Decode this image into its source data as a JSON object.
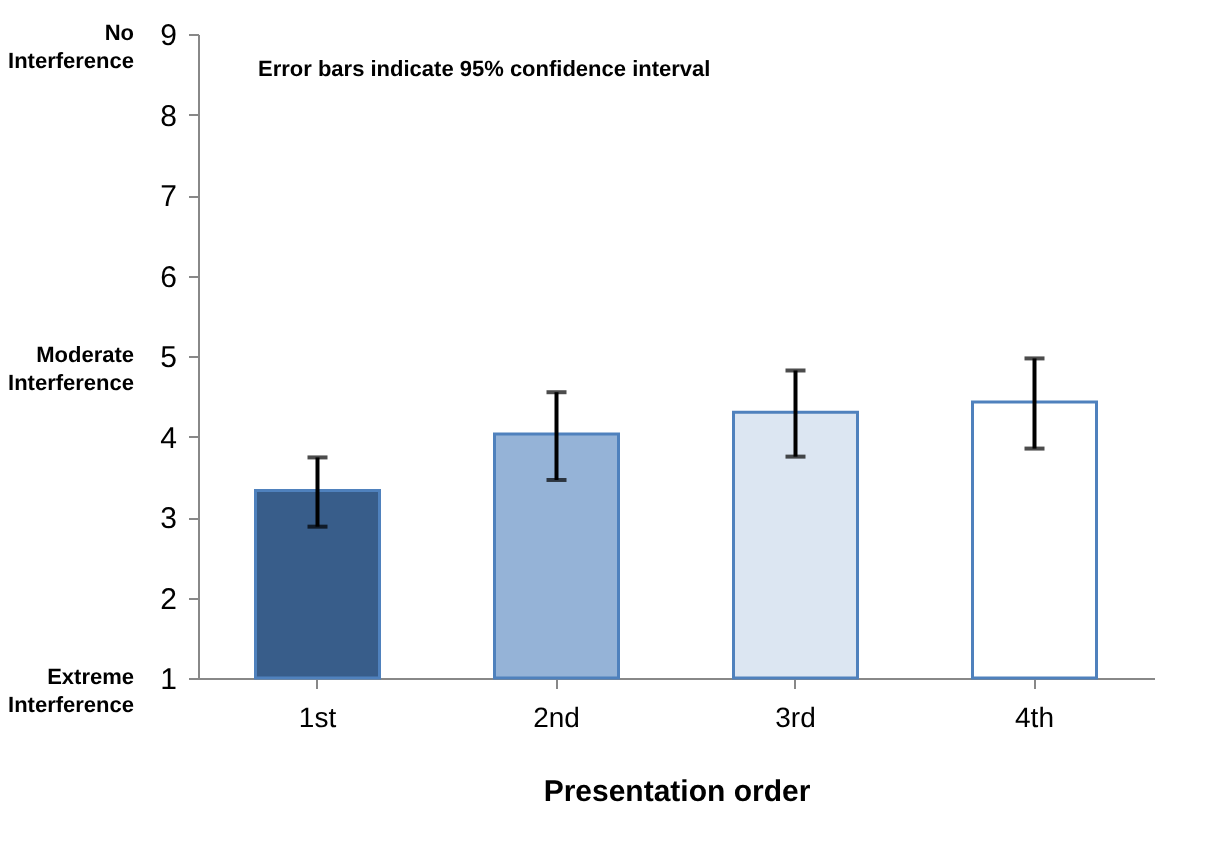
{
  "chart_data": {
    "type": "bar",
    "xlabel": "Presentation order",
    "categories": [
      "1st",
      "2nd",
      "3rd",
      "4th"
    ],
    "values": [
      3.33,
      4.03,
      4.3,
      4.43
    ],
    "colors": [
      "#385d8a",
      "#95b3d7",
      "#dce6f2",
      "#ffffff"
    ],
    "errors": [
      [
        2.88,
        3.74
      ],
      [
        3.46,
        4.55
      ],
      [
        3.75,
        4.82
      ],
      [
        3.85,
        4.97
      ]
    ],
    "ylim": [
      1,
      9
    ],
    "yticks": [
      1,
      2,
      3,
      4,
      5,
      6,
      7,
      8,
      9
    ],
    "grid": false,
    "legend": false,
    "annotations": [
      "Error bars indicate 95% confidence interval",
      "No Interference",
      "Moderate Interference",
      "Extreme Interference"
    ]
  }
}
